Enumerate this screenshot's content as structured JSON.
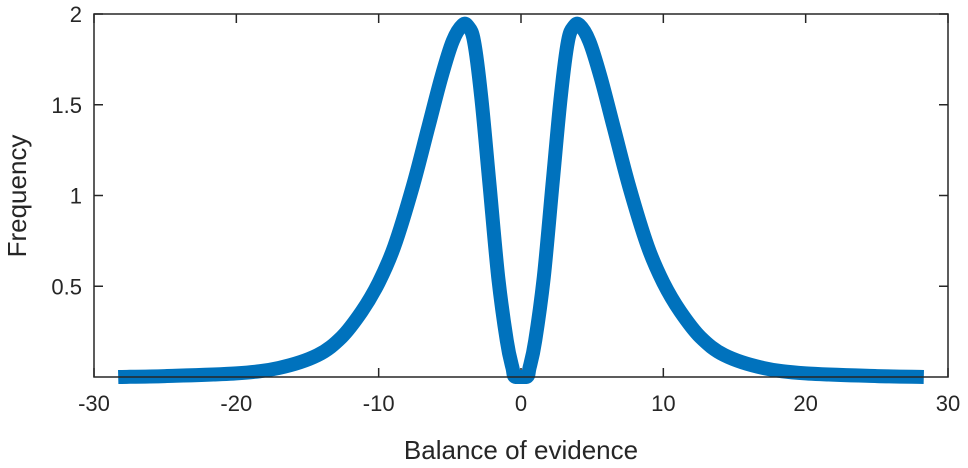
{
  "chart_data": {
    "type": "line",
    "title": "",
    "xlabel": "Balance of evidence",
    "ylabel": "Frequency",
    "xlim": [
      -30,
      30
    ],
    "ylim": [
      0,
      2
    ],
    "xticks": [
      -30,
      -20,
      -10,
      0,
      10,
      20,
      30
    ],
    "xtick_labels": [
      "-30",
      "-20",
      "-10",
      "0",
      "10",
      "20",
      "30"
    ],
    "yticks": [
      0.5,
      1,
      1.5,
      2
    ],
    "ytick_labels": [
      "0.5",
      "1",
      "1.5",
      "2"
    ],
    "grid": false,
    "series": [
      {
        "color": "#0072BD",
        "x": [
          -28.3,
          -25,
          -20,
          -17,
          -14.3,
          -12.6,
          -11.2,
          -10,
          -8.9,
          -7.6,
          -6.5,
          -5.6,
          -4.8,
          -4.1,
          -3.7,
          -3.3,
          -2.8,
          -2.2,
          -1.6,
          -1.0,
          -0.6,
          -0.4,
          0.4,
          0.6,
          1.0,
          1.6,
          2.2,
          2.8,
          3.3,
          3.7,
          4.1,
          4.8,
          5.6,
          6.5,
          7.6,
          8.9,
          10,
          11.2,
          12.6,
          14.3,
          17,
          20,
          25,
          28.3
        ],
        "y": [
          0.0,
          0.005,
          0.02,
          0.05,
          0.12,
          0.22,
          0.36,
          0.52,
          0.72,
          1.05,
          1.38,
          1.65,
          1.85,
          1.94,
          1.93,
          1.85,
          1.55,
          1.05,
          0.55,
          0.2,
          0.05,
          0.0,
          0.0,
          0.05,
          0.2,
          0.55,
          1.05,
          1.55,
          1.85,
          1.93,
          1.94,
          1.85,
          1.65,
          1.38,
          1.05,
          0.72,
          0.52,
          0.36,
          0.22,
          0.12,
          0.05,
          0.02,
          0.005,
          0.0
        ]
      }
    ]
  }
}
